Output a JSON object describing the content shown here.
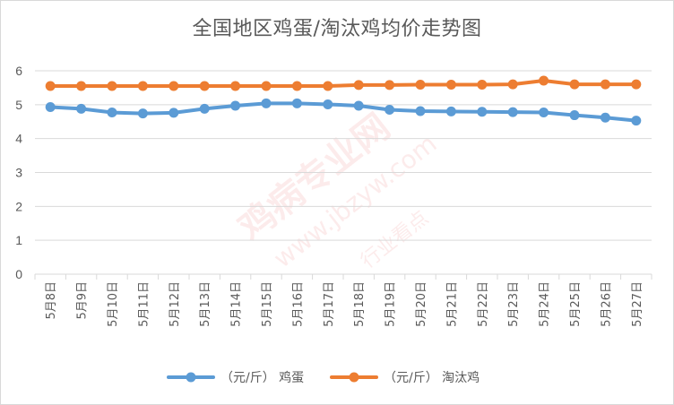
{
  "chart_data": {
    "type": "line",
    "title": "全国地区鸡蛋/淘汰鸡均价走势图",
    "categories": [
      "5月8日",
      "5月9日",
      "5月10日",
      "5月11日",
      "5月12日",
      "5月13日",
      "5月14日",
      "5月15日",
      "5月16日",
      "5月17日",
      "5月18日",
      "5月19日",
      "5月20日",
      "5月21日",
      "5月22日",
      "5月23日",
      "5月24日",
      "5月25日",
      "5月26日",
      "5月27日"
    ],
    "series": [
      {
        "name": "（元/斤） 鸡蛋",
        "color": "#5b9bd5",
        "values": [
          4.93,
          4.88,
          4.77,
          4.74,
          4.76,
          4.88,
          4.97,
          5.04,
          5.04,
          5.01,
          4.97,
          4.85,
          4.81,
          4.8,
          4.79,
          4.78,
          4.77,
          4.69,
          4.62,
          4.53
        ]
      },
      {
        "name": "（元/斤） 淘汰鸡",
        "color": "#ed7d31",
        "values": [
          5.55,
          5.55,
          5.55,
          5.55,
          5.55,
          5.55,
          5.55,
          5.55,
          5.55,
          5.55,
          5.58,
          5.58,
          5.59,
          5.59,
          5.59,
          5.6,
          5.71,
          5.6,
          5.6,
          5.6
        ]
      }
    ],
    "ylim": [
      0,
      6
    ],
    "yticks": [
      0,
      1,
      2,
      3,
      4,
      5,
      6
    ],
    "grid": true,
    "legend": "bottom"
  },
  "watermark": {
    "line1": "鸡病专业网",
    "line2": "www.jbzyw.com",
    "line3": "行业看点"
  }
}
